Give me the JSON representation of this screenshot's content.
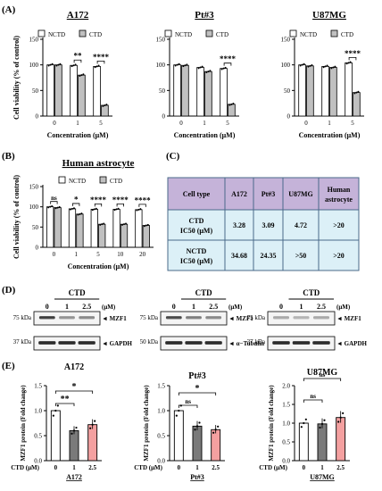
{
  "panel_labels": {
    "A": "(A)",
    "B": "(B)",
    "C": "(C)",
    "D": "(D)",
    "E": "(E)"
  },
  "legend": {
    "nctd": "NCTD",
    "ctd": "CTD"
  },
  "colors": {
    "nctd_fill": "#ffffff",
    "ctd_fill": "#c0c0c0",
    "table_header": "#c5b3d9",
    "table_cell": "#dcf0f7",
    "table_border": "#4a6a8a",
    "bar_stroke": "#000000",
    "e_bar_zero": "#ffffff",
    "e_bar_one": "#7a7a7a",
    "e_bar_two": "#f4a0a0"
  },
  "chart_data": [
    {
      "type": "bar",
      "title": "A172",
      "categories": [
        "0",
        "1",
        "5"
      ],
      "xlabel": "Concentration (μM)",
      "ylabel": "Cell viability (% of control)",
      "ylim": [
        0,
        150
      ],
      "yticks": [
        "0",
        "50",
        "100",
        "150"
      ],
      "series": [
        {
          "name": "NCTD",
          "values": [
            100,
            99,
            97
          ]
        },
        {
          "name": "CTD",
          "values": [
            100,
            80,
            21
          ]
        }
      ],
      "significance": [
        {
          "category": "1",
          "label": "**"
        },
        {
          "category": "5",
          "label": "****"
        }
      ]
    },
    {
      "type": "bar",
      "title": "Pt#3",
      "categories": [
        "0",
        "1",
        "5"
      ],
      "xlabel": "Concentration (μM)",
      "ylabel": "",
      "ylim": [
        0,
        150
      ],
      "yticks": [
        "0",
        "50",
        "100",
        "150"
      ],
      "series": [
        {
          "name": "NCTD",
          "values": [
            100,
            95,
            93
          ]
        },
        {
          "name": "CTD",
          "values": [
            99,
            87,
            23
          ]
        }
      ],
      "significance": [
        {
          "category": "5",
          "label": "****"
        }
      ]
    },
    {
      "type": "bar",
      "title": "U87MG",
      "categories": [
        "0",
        "1",
        "5"
      ],
      "xlabel": "Concentration (μM)",
      "ylabel": "",
      "ylim": [
        0,
        150
      ],
      "yticks": [
        "0",
        "50",
        "100",
        "150"
      ],
      "series": [
        {
          "name": "NCTD",
          "values": [
            100,
            97,
            104
          ]
        },
        {
          "name": "CTD",
          "values": [
            98,
            95,
            46
          ]
        }
      ],
      "significance": [
        {
          "category": "5",
          "label": "****"
        }
      ]
    },
    {
      "type": "bar",
      "title": "Human astrocyte",
      "categories": [
        "0",
        "1",
        "5",
        "10",
        "20"
      ],
      "xlabel": "Concentration (μM)",
      "ylabel": "Cell viability (% of control)",
      "ylim": [
        0,
        150
      ],
      "yticks": [
        "0",
        "50",
        "100",
        "150"
      ],
      "series": [
        {
          "name": "NCTD",
          "values": [
            100,
            95,
            94,
            94,
            93
          ]
        },
        {
          "name": "CTD",
          "values": [
            98,
            82,
            57,
            57,
            54
          ]
        }
      ],
      "significance": [
        {
          "category": "0",
          "label": "ns"
        },
        {
          "category": "1",
          "label": "*"
        },
        {
          "category": "5",
          "label": "****"
        },
        {
          "category": "10",
          "label": "****"
        },
        {
          "category": "20",
          "label": "****"
        }
      ]
    },
    {
      "type": "table",
      "columns": [
        "Cell type",
        "A172",
        "Pt#3",
        "U87MG",
        "Human astrocyte"
      ],
      "rows": [
        [
          "CTD IC50 (μM)",
          "3.28",
          "3.09",
          "4.72",
          ">20"
        ],
        [
          "NCTD IC50 (μM)",
          "34.68",
          "24.35",
          ">50",
          ">20"
        ]
      ]
    },
    {
      "type": "bar",
      "title": "A172",
      "categories": [
        "0",
        "1",
        "2.5"
      ],
      "xlabel": "CTD (μM)",
      "ylabel": "MZF1 protein (Fold change)",
      "ylim": [
        0,
        1.5
      ],
      "yticks": [
        "0.0",
        "0.5",
        "1.0",
        "1.5"
      ],
      "values": [
        1.0,
        0.6,
        0.72
      ],
      "significance": [
        {
          "pair": [
            "0",
            "1"
          ],
          "label": "**"
        },
        {
          "pair": [
            "0",
            "2.5"
          ],
          "label": "*"
        }
      ]
    },
    {
      "type": "bar",
      "title": "Pt#3",
      "categories": [
        "0",
        "1",
        "2.5"
      ],
      "xlabel": "CTD (μM)",
      "ylabel": "MZF1 protein (Fold change)",
      "ylim": [
        0,
        1.5
      ],
      "yticks": [
        "0.0",
        "0.5",
        "1.0",
        "1.5"
      ],
      "values": [
        1.0,
        0.69,
        0.62
      ],
      "significance": [
        {
          "pair": [
            "0",
            "1"
          ],
          "label": "ns"
        },
        {
          "pair": [
            "0",
            "2.5"
          ],
          "label": "*"
        }
      ]
    },
    {
      "type": "bar",
      "title": "U87MG",
      "categories": [
        "0",
        "1",
        "2.5"
      ],
      "xlabel": "CTD (μM)",
      "ylabel": "MZF1 protein (Fold change)",
      "ylim": [
        0,
        2.0
      ],
      "yticks": [
        "0.0",
        "0.5",
        "1.0",
        "1.5",
        "2.0"
      ],
      "values": [
        1.0,
        0.98,
        1.15
      ],
      "significance": [
        {
          "pair": [
            "0",
            "1"
          ],
          "label": "ns"
        },
        {
          "pair": [
            "0",
            "2.5"
          ],
          "label": "ns"
        }
      ]
    }
  ],
  "blots": [
    {
      "treatment": "CTD",
      "unit": "(μM)",
      "lanes": [
        "0",
        "1",
        "2.5"
      ],
      "marker_top": "75 kDa",
      "marker_bottom": "37 kDa",
      "band_top": "MZF1",
      "band_bottom": "GAPDH"
    },
    {
      "treatment": "CTD",
      "unit": "(μM)",
      "lanes": [
        "0",
        "1",
        "2.5"
      ],
      "marker_top": "75 kDa",
      "marker_bottom": "50 kDa",
      "band_top": "MZF1",
      "band_bottom": "α−Tubulin"
    },
    {
      "treatment": "CTD",
      "unit": "(μM)",
      "lanes": [
        "0",
        "1",
        "2.5"
      ],
      "marker_top": "75 kDa",
      "marker_bottom": "37 kDa",
      "band_top": "MZF1",
      "band_bottom": "GAPDH"
    }
  ]
}
